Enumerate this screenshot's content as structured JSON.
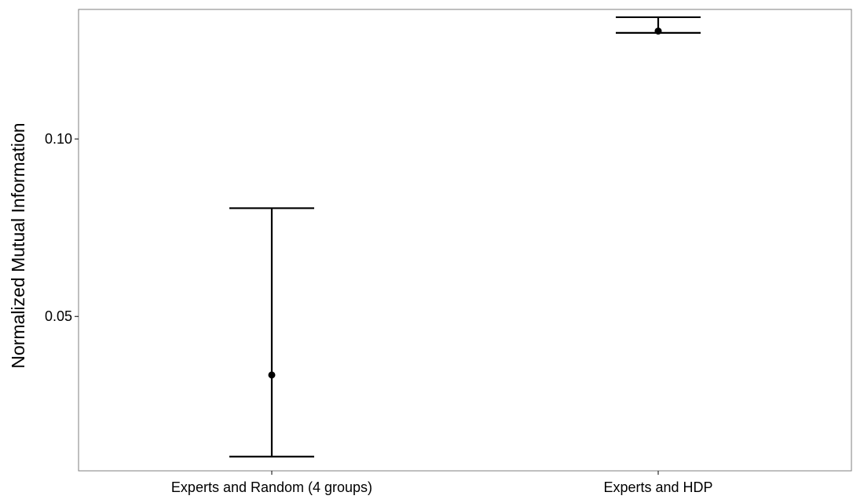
{
  "chart_data": {
    "type": "errorbar",
    "title": "",
    "xlabel": "",
    "ylabel": "Normalized Mutual Information",
    "categories": [
      "Experts and Random (4 groups)",
      "Experts and HDP"
    ],
    "points": [
      {
        "category": "Experts and Random (4 groups)",
        "mean": 0.0335,
        "lower": 0.0105,
        "upper": 0.0805
      },
      {
        "category": "Experts and HDP",
        "mean": 0.1304,
        "lower": 0.1299,
        "upper": 0.1343
      }
    ],
    "ylim": [
      0.0065,
      0.1365
    ],
    "yticks": [
      0.05,
      0.1
    ],
    "ytick_labels": [
      "0.05",
      "0.10"
    ],
    "grid": false,
    "legend": "none",
    "colors": {
      "line": "#000000",
      "point": "#000000",
      "panel_border": "#7f7f7f",
      "background": "#ffffff"
    }
  }
}
